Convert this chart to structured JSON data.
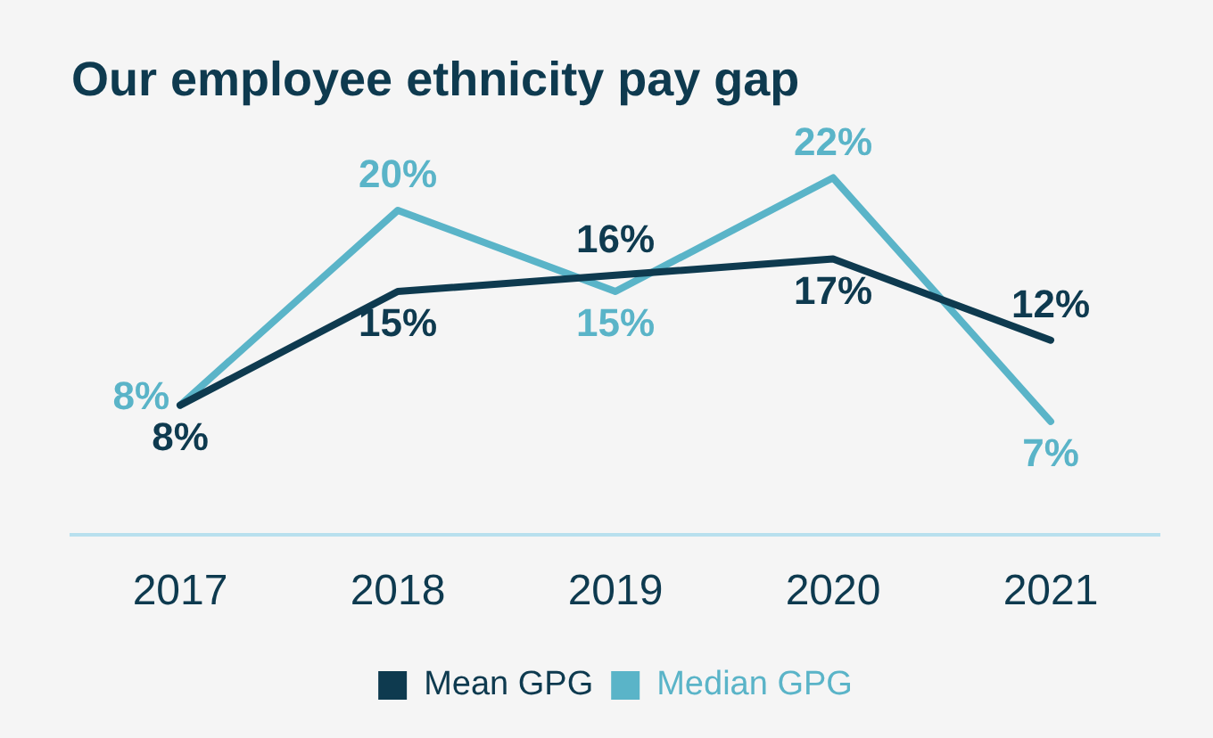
{
  "chart_data": {
    "type": "line",
    "title": "Our employee ethnicity pay gap",
    "categories": [
      "2017",
      "2018",
      "2019",
      "2020",
      "2021"
    ],
    "series": [
      {
        "name": "Mean GPG",
        "color": "#0e3a4f",
        "values": [
          8,
          15,
          16,
          17,
          12
        ],
        "value_labels": [
          "8%",
          "15%",
          "16%",
          "17%",
          "12%"
        ]
      },
      {
        "name": "Median GPG",
        "color": "#5ab4c8",
        "values": [
          8,
          20,
          15,
          22,
          7
        ],
        "value_labels": [
          "8%",
          "20%",
          "15%",
          "22%",
          "7%"
        ]
      }
    ],
    "grid": false,
    "legend": "bottom",
    "marker": "none",
    "line_style": "solid",
    "tick_labels": "x"
  }
}
